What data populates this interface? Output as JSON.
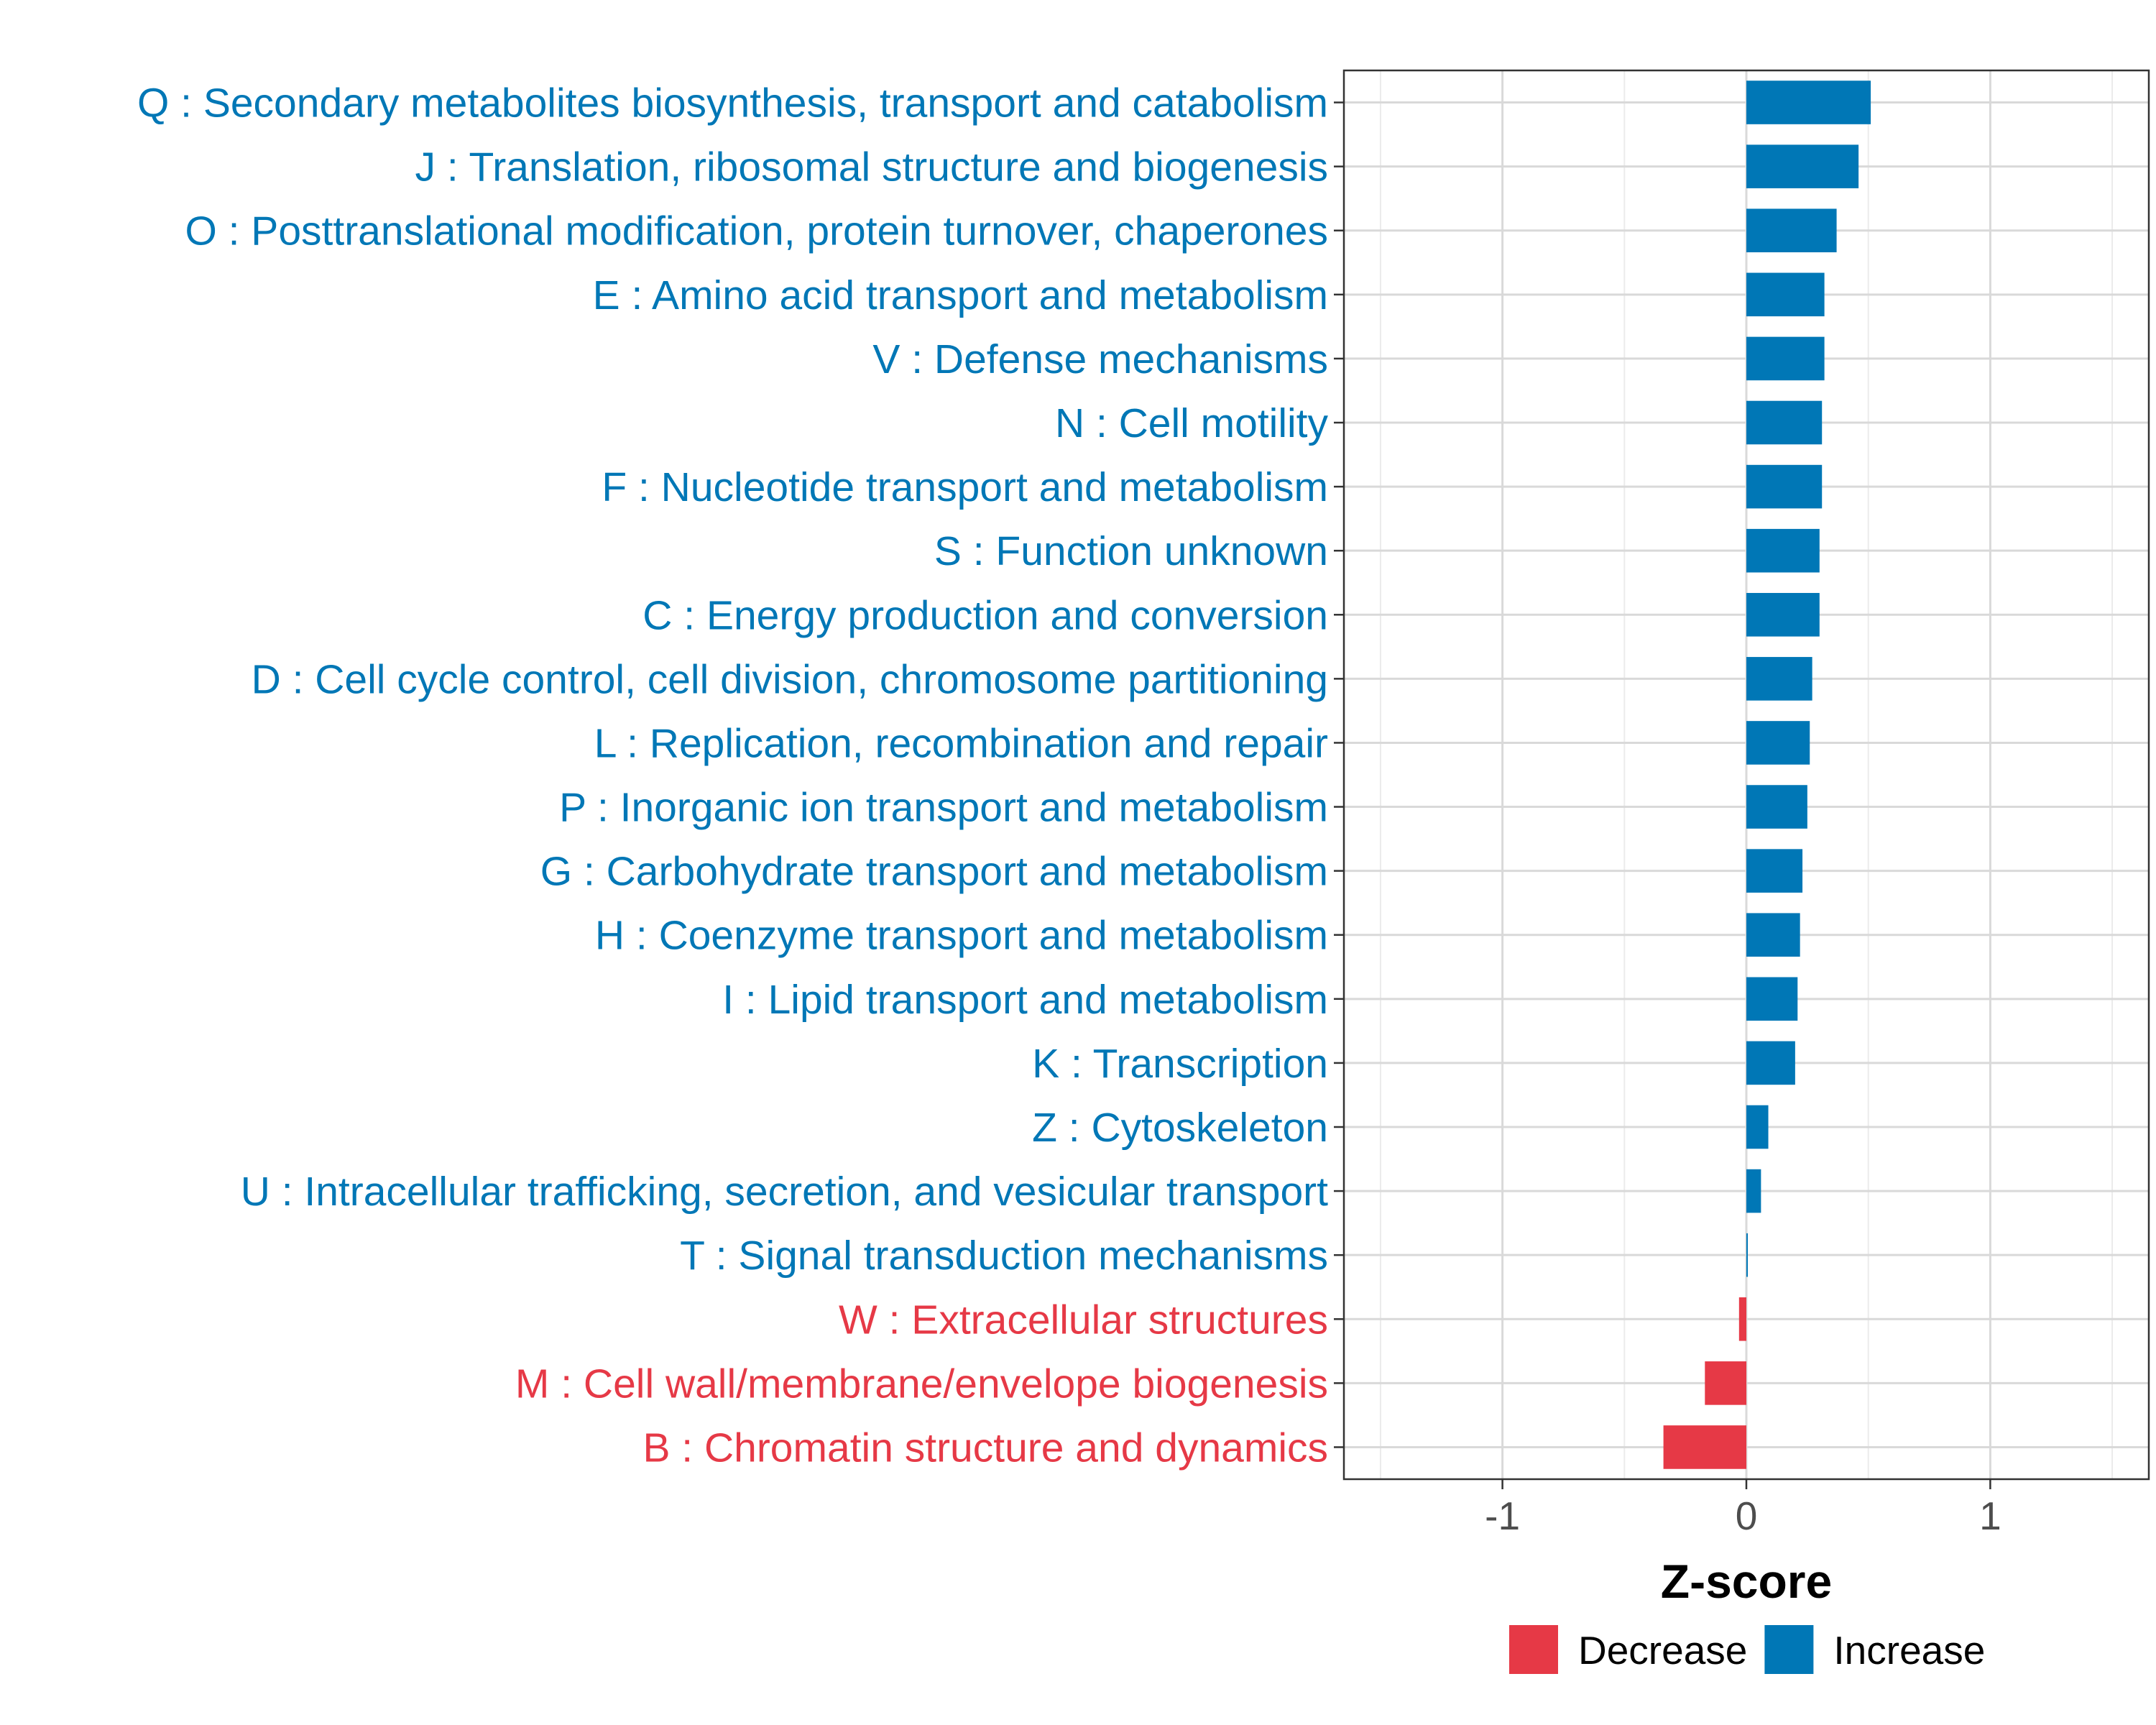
{
  "chart_data": {
    "type": "bar",
    "orientation": "horizontal",
    "title": "",
    "xlabel": "Z-score",
    "ylabel": "",
    "xlim": [
      -1.65,
      1.65
    ],
    "xticks": [
      -1,
      0,
      1
    ],
    "xtick_labels": [
      "-1",
      "0",
      "1"
    ],
    "grid": true,
    "legend_position": "bottom",
    "colors": {
      "Increase": "#0077b6",
      "Decrease": "#e63946"
    },
    "legend": [
      {
        "name": "Decrease",
        "color": "#e63946"
      },
      {
        "name": "Increase",
        "color": "#0077b6"
      }
    ],
    "categories": [
      "Q : Secondary metabolites biosynthesis, transport and catabolism",
      "J : Translation, ribosomal structure and biogenesis",
      "O : Posttranslational modification, protein turnover, chaperones",
      "E : Amino acid transport and metabolism",
      "V : Defense mechanisms",
      "N : Cell motility",
      "F : Nucleotide transport and metabolism",
      "S : Function unknown",
      "C : Energy production and conversion",
      "D : Cell cycle control, cell division, chromosome partitioning",
      "L : Replication, recombination and repair",
      "P : Inorganic ion transport and metabolism",
      "G : Carbohydrate transport and metabolism",
      "H : Coenzyme transport and metabolism",
      "I : Lipid transport and metabolism",
      "K : Transcription",
      "Z : Cytoskeleton",
      "U : Intracellular trafficking, secretion, and vesicular transport",
      "T : Signal transduction mechanisms",
      "W : Extracellular structures",
      "M : Cell wall/membrane/envelope biogenesis",
      "B : Chromatin structure and dynamics"
    ],
    "values": [
      0.51,
      0.46,
      0.37,
      0.32,
      0.32,
      0.31,
      0.31,
      0.3,
      0.3,
      0.27,
      0.26,
      0.25,
      0.23,
      0.22,
      0.21,
      0.2,
      0.09,
      0.06,
      0.005,
      -0.03,
      -0.17,
      -0.34
    ],
    "direction": [
      "Increase",
      "Increase",
      "Increase",
      "Increase",
      "Increase",
      "Increase",
      "Increase",
      "Increase",
      "Increase",
      "Increase",
      "Increase",
      "Increase",
      "Increase",
      "Increase",
      "Increase",
      "Increase",
      "Increase",
      "Increase",
      "Increase",
      "Decrease",
      "Decrease",
      "Decrease"
    ]
  }
}
